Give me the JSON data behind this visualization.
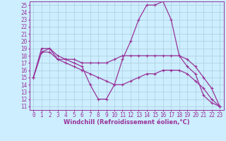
{
  "xlabel": "Windchill (Refroidissement éolien,°C)",
  "bg_color": "#cceeff",
  "grid_color": "#aaccdd",
  "line_color": "#993399",
  "xlim": [
    -0.5,
    23.5
  ],
  "ylim": [
    10.5,
    25.5
  ],
  "xticks": [
    0,
    1,
    2,
    3,
    4,
    5,
    6,
    7,
    8,
    9,
    10,
    11,
    12,
    13,
    14,
    15,
    16,
    17,
    18,
    19,
    20,
    21,
    22,
    23
  ],
  "yticks": [
    11,
    12,
    13,
    14,
    15,
    16,
    17,
    18,
    19,
    20,
    21,
    22,
    23,
    24,
    25
  ],
  "line1_x": [
    0,
    1,
    2,
    3,
    4,
    5,
    6,
    7,
    8,
    9,
    10,
    11,
    12,
    13,
    14,
    15,
    16,
    17,
    18,
    19,
    20,
    21,
    22,
    23
  ],
  "line1_y": [
    15.0,
    18.5,
    19.0,
    17.5,
    17.5,
    17.0,
    16.5,
    14.0,
    12.0,
    12.0,
    14.0,
    17.5,
    20.0,
    23.0,
    25.0,
    25.0,
    25.5,
    23.0,
    18.0,
    16.5,
    15.5,
    12.5,
    11.5,
    11.0
  ],
  "line2_x": [
    0,
    1,
    2,
    3,
    4,
    5,
    6,
    7,
    8,
    9,
    10,
    11,
    12,
    13,
    14,
    15,
    16,
    17,
    18,
    19,
    20,
    21,
    22,
    23
  ],
  "line2_y": [
    15.0,
    19.0,
    19.0,
    18.0,
    17.5,
    17.5,
    17.0,
    17.0,
    17.0,
    17.0,
    17.5,
    18.0,
    18.0,
    18.0,
    18.0,
    18.0,
    18.0,
    18.0,
    18.0,
    17.5,
    16.5,
    15.0,
    13.5,
    11.0
  ],
  "line3_x": [
    0,
    1,
    2,
    3,
    4,
    5,
    6,
    7,
    8,
    9,
    10,
    11,
    12,
    13,
    14,
    15,
    16,
    17,
    18,
    19,
    20,
    21,
    22,
    23
  ],
  "line3_y": [
    15.0,
    18.5,
    18.5,
    17.5,
    17.0,
    16.5,
    16.0,
    15.5,
    15.0,
    14.5,
    14.0,
    14.0,
    14.5,
    15.0,
    15.5,
    15.5,
    16.0,
    16.0,
    16.0,
    15.5,
    14.5,
    13.5,
    12.0,
    11.0
  ],
  "tick_fontsize": 5.5,
  "xlabel_fontsize": 6.0,
  "marker_size": 2.5,
  "line_width": 0.9
}
